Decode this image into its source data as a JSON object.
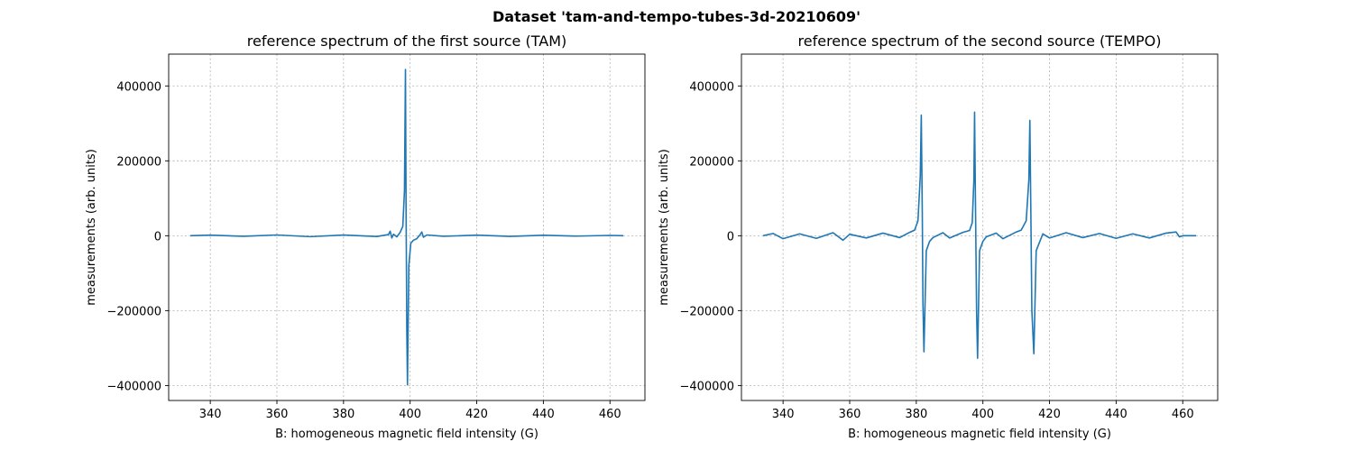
{
  "figure": {
    "suptitle": "Dataset 'tam-and-tempo-tubes-3d-20210609'"
  },
  "chart_data": [
    {
      "type": "line",
      "title": "reference spectrum of the first source (TAM)",
      "xlabel": "B: homogeneous magnetic field intensity (G)",
      "ylabel": "measurements (arb. units)",
      "xlim": [
        327.5,
        470.5
      ],
      "ylim": [
        -440000,
        485000
      ],
      "xticks": [
        340,
        360,
        380,
        400,
        420,
        440,
        460
      ],
      "yticks": [
        -400000,
        -200000,
        0,
        200000,
        400000
      ],
      "xtick_labels": [
        "340",
        "360",
        "380",
        "400",
        "420",
        "440",
        "460"
      ],
      "ytick_labels": [
        "−400000",
        "−200000",
        "0",
        "200000",
        "400000"
      ],
      "grid": true,
      "color": "#1f77b4",
      "series": [
        {
          "x": [
            334,
            340,
            350,
            360,
            370,
            380,
            390,
            393.5,
            394,
            394.5,
            395,
            396,
            397,
            397.8,
            398.3,
            398.6,
            398.8,
            399.0,
            399.2,
            399.6,
            400.2,
            401,
            402,
            403,
            403.5,
            404,
            405,
            410,
            420,
            430,
            440,
            450,
            460,
            464
          ],
          "y": [
            0,
            1500,
            -1500,
            2000,
            -2500,
            1800,
            -2000,
            3000,
            12000,
            -6000,
            4000,
            -3000,
            9000,
            25000,
            120000,
            444000,
            50000,
            -250000,
            -398000,
            -80000,
            -20000,
            -12000,
            -8000,
            3000,
            10000,
            -4000,
            2000,
            -1500,
            1500,
            -1800,
            1200,
            -1000,
            800,
            0
          ]
        }
      ]
    },
    {
      "type": "line",
      "title": "reference spectrum of the second source (TEMPO)",
      "xlabel": "B: homogeneous magnetic field intensity (G)",
      "ylabel": "measurements (arb. units)",
      "xlim": [
        327.5,
        470.5
      ],
      "ylim": [
        -440000,
        485000
      ],
      "xticks": [
        340,
        360,
        380,
        400,
        420,
        440,
        460
      ],
      "yticks": [
        -400000,
        -200000,
        0,
        200000,
        400000
      ],
      "xtick_labels": [
        "340",
        "360",
        "380",
        "400",
        "420",
        "440",
        "460"
      ],
      "ytick_labels": [
        "−400000",
        "−200000",
        "0",
        "200000",
        "400000"
      ],
      "grid": true,
      "color": "#1f77b4",
      "series": [
        {
          "x": [
            334,
            337,
            340,
            345,
            350,
            355,
            358,
            360,
            365,
            370,
            375,
            378,
            379.5,
            380.5,
            381.2,
            381.5,
            381.8,
            382.0,
            382.3,
            383,
            384,
            385,
            388,
            390,
            394,
            396,
            396.8,
            397.3,
            397.5,
            397.8,
            398.1,
            398.4,
            399,
            400,
            401,
            404,
            406,
            410,
            411.5,
            413,
            413.8,
            414.1,
            414.4,
            414.7,
            415.3,
            416,
            418,
            420,
            425,
            430,
            435,
            440,
            445,
            450,
            455,
            458,
            459,
            460,
            464
          ],
          "y": [
            0,
            6000,
            -8000,
            5000,
            -7000,
            8000,
            -12000,
            4000,
            -6000,
            7000,
            -5000,
            9000,
            15000,
            40000,
            160000,
            322000,
            60000,
            -180000,
            -310000,
            -40000,
            -15000,
            -5000,
            8000,
            -6000,
            9000,
            14000,
            35000,
            150000,
            330000,
            60000,
            -200000,
            -327000,
            -40000,
            -15000,
            -3000,
            7000,
            -8000,
            10000,
            15000,
            40000,
            150000,
            308000,
            60000,
            -200000,
            -315000,
            -40000,
            5000,
            -6000,
            8000,
            -5000,
            6000,
            -7000,
            5000,
            -6000,
            7000,
            10000,
            -3000,
            0,
            0
          ]
        }
      ]
    }
  ]
}
